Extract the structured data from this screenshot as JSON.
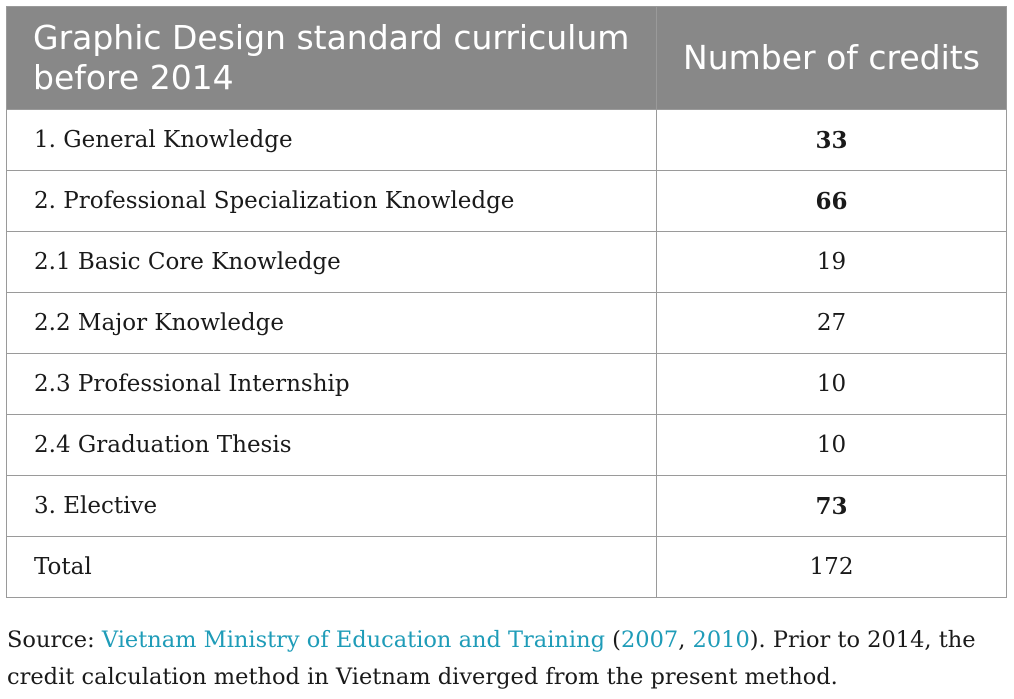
{
  "table": {
    "headers": {
      "left": "Graphic Design standard curriculum before 2014",
      "right": "Number of credits"
    },
    "rows": [
      {
        "label": "1. General Knowledge",
        "value": "33",
        "bold": true
      },
      {
        "label": "2. Professional Specialization Knowledge",
        "value": "66",
        "bold": true
      },
      {
        "label": "2.1 Basic Core Knowledge",
        "value": "19",
        "bold": false
      },
      {
        "label": "2.2 Major Knowledge",
        "value": "27",
        "bold": false
      },
      {
        "label": "2.3 Professional Internship",
        "value": "10",
        "bold": false
      },
      {
        "label": "2.4 Graduation Thesis",
        "value": "10",
        "bold": false
      },
      {
        "label": "3. Elective",
        "value": "73",
        "bold": true
      },
      {
        "label": "Total",
        "value": "172",
        "bold": false
      }
    ]
  },
  "caption": {
    "prefix": "Source: ",
    "source_link": "Vietnam Ministry of Education and Training",
    "open_paren": " (",
    "year1": "2007",
    "sep": ", ",
    "year2": "2010",
    "rest": "). Prior to 2014, the credit calculation method in Vietnam diverged from the present method."
  },
  "colors": {
    "header_bg": "#888888",
    "header_text": "#ffffff",
    "border": "#9a9a9a",
    "link": "#1f9cb8"
  }
}
